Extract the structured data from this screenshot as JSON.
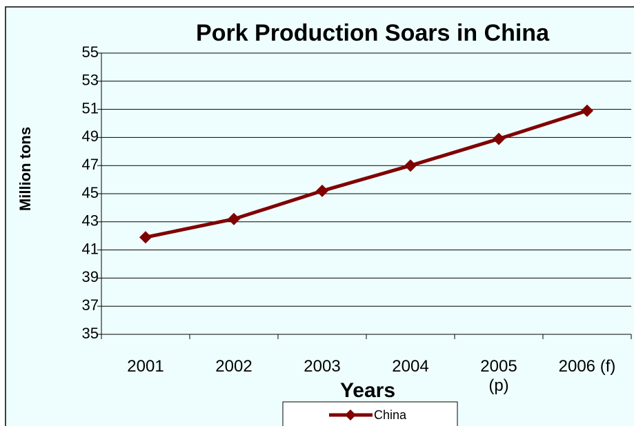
{
  "chart_data": {
    "type": "line",
    "title": "Pork Production Soars in China",
    "x_label": "Years",
    "y_label": "Million tons",
    "categories": [
      "2001",
      "2002",
      "2003",
      "2004",
      "2005\n(p)",
      "2006 (f)"
    ],
    "series": [
      {
        "name": "China",
        "color": "#800000",
        "values": [
          41.9,
          43.2,
          45.2,
          47.0,
          48.9,
          50.9
        ]
      }
    ],
    "ylim": [
      35,
      55
    ],
    "yticks": [
      35,
      37,
      39,
      41,
      43,
      45,
      47,
      49,
      51,
      53,
      55
    ],
    "grid": true,
    "legend": "bottom"
  }
}
